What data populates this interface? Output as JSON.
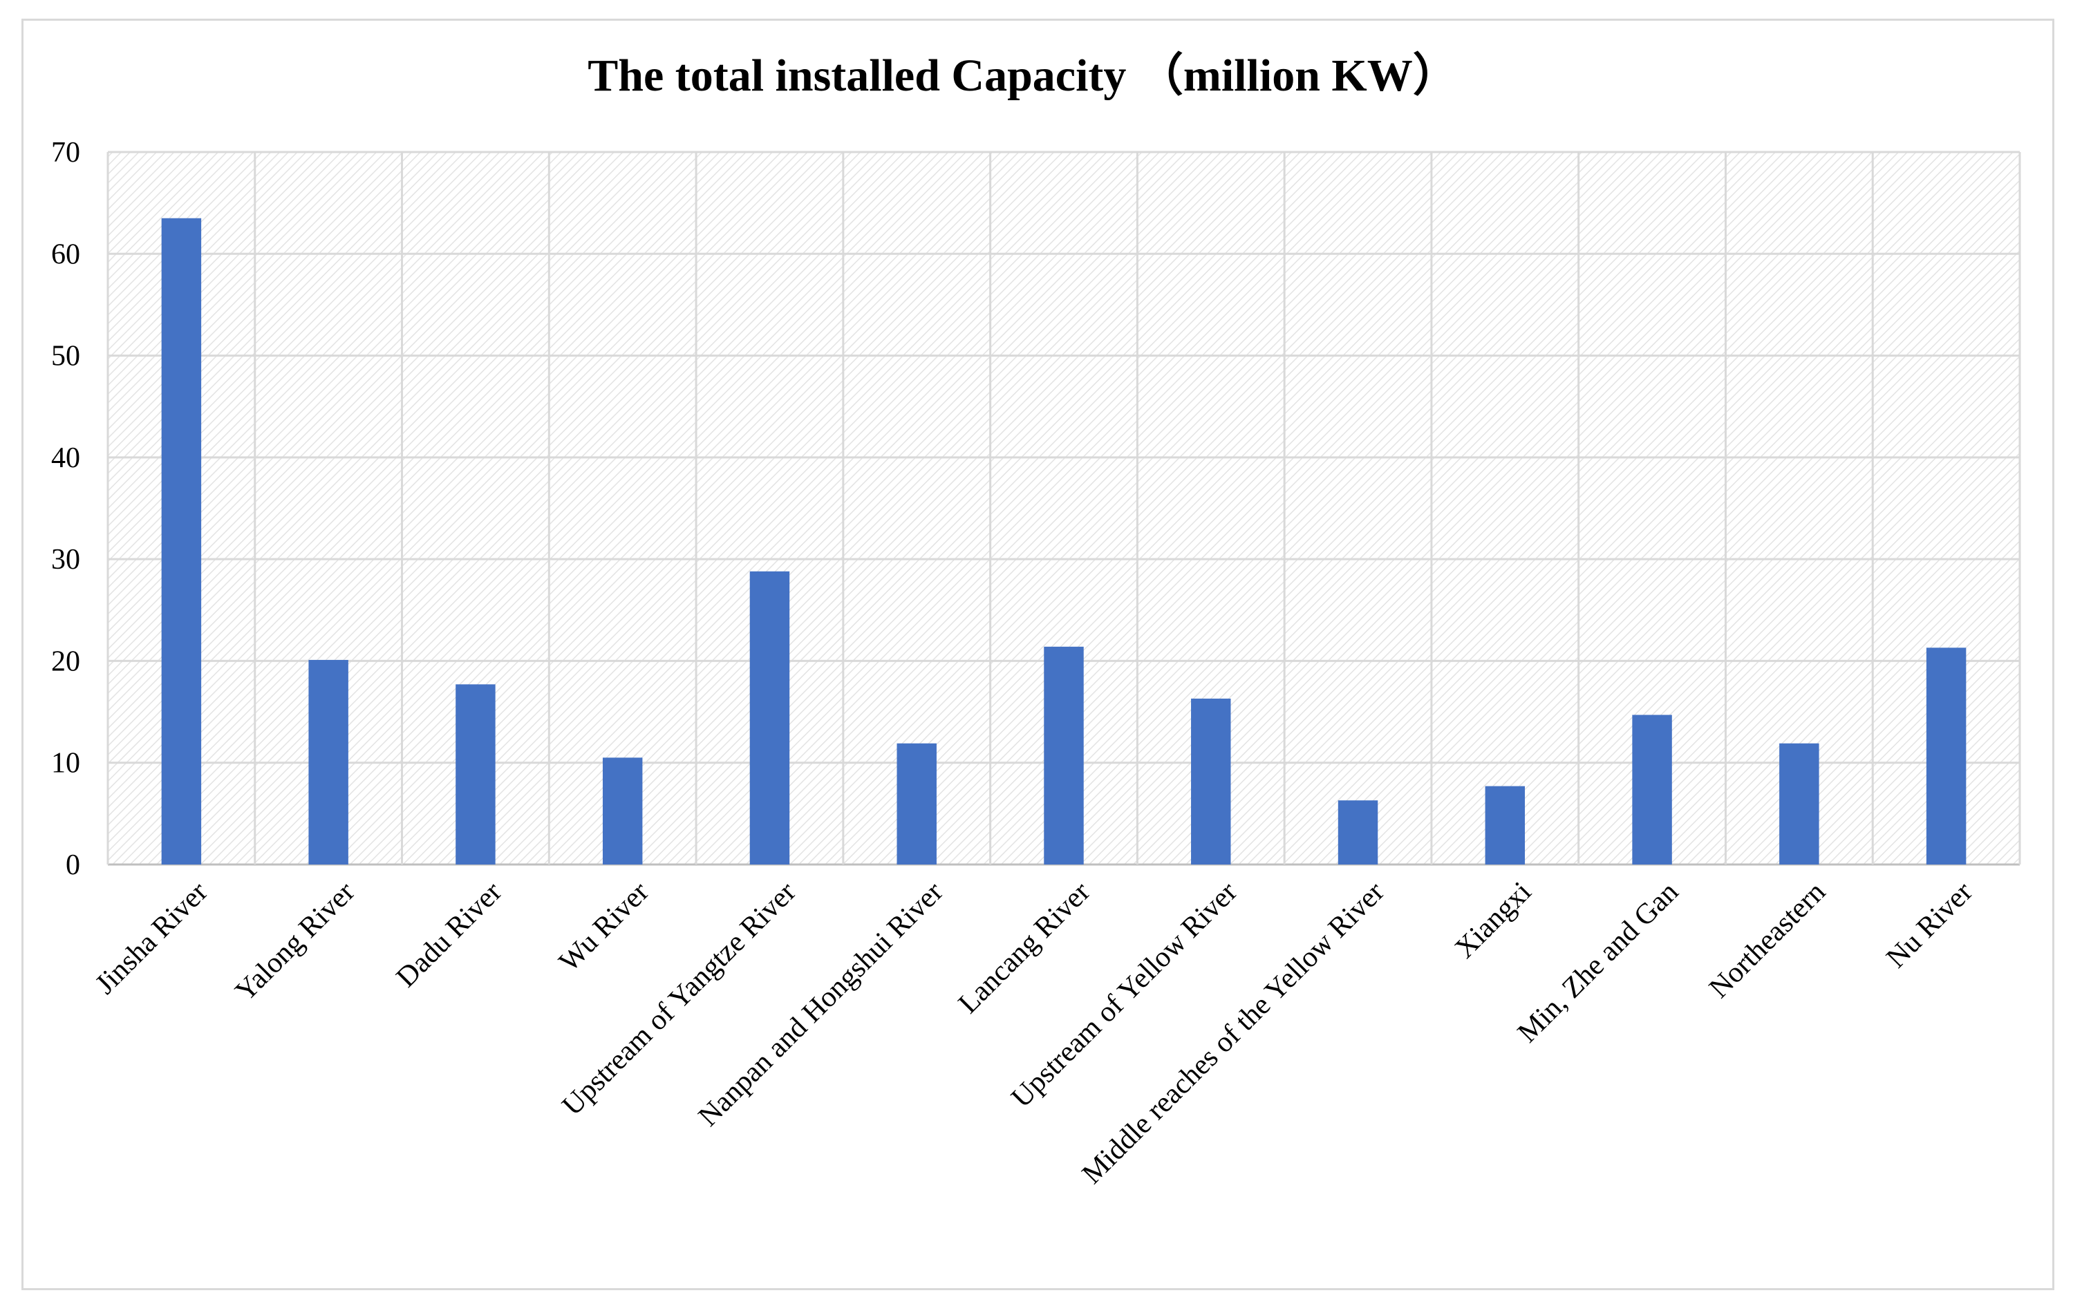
{
  "chart_data": {
    "type": "bar",
    "title": "The total installed Capacity （million KW）",
    "xlabel": "",
    "ylabel": "",
    "ylim": [
      0,
      70
    ],
    "yticks": [
      0,
      10,
      20,
      30,
      40,
      50,
      60,
      70
    ],
    "grid": true,
    "legend": "none",
    "bar_color": "#4472C4",
    "categories": [
      "Jinsha River",
      "Yalong River",
      "Dadu River",
      "Wu River",
      "Upstream of Yangtze River",
      "Nanpan and Hongshui River",
      "Lancang River",
      "Upstream of Yellow River",
      "Middle reaches of the Yellow River",
      "Xiangxi",
      "Min, Zhe and Gan",
      "Northeastern",
      "Nu River"
    ],
    "values": [
      63.5,
      20.1,
      17.7,
      10.5,
      28.8,
      11.9,
      21.4,
      16.3,
      6.3,
      7.7,
      14.7,
      11.9,
      21.3
    ]
  }
}
